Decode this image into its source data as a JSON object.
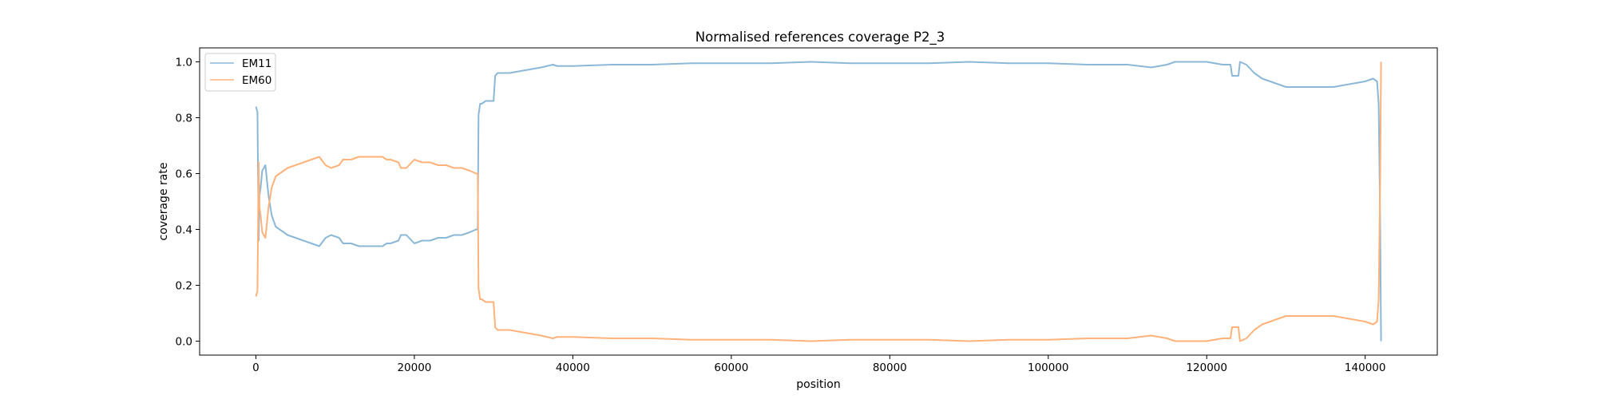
{
  "chart_data": {
    "type": "line",
    "title": "Normalised references coverage P2_3",
    "xlabel": "position",
    "ylabel": "coverage rate",
    "xlim": [
      -7100,
      149100
    ],
    "ylim": [
      -0.05,
      1.05
    ],
    "xticks": [
      0,
      20000,
      40000,
      60000,
      80000,
      100000,
      120000,
      140000
    ],
    "yticks": [
      0.0,
      0.2,
      0.4,
      0.6,
      0.8,
      1.0
    ],
    "xtick_labels": [
      "0",
      "20000",
      "40000",
      "60000",
      "80000",
      "100000",
      "120000",
      "140000"
    ],
    "ytick_labels": [
      "0.0",
      "0.2",
      "0.4",
      "0.6",
      "0.8",
      "1.0"
    ],
    "grid": false,
    "legend_position": "top-left",
    "series": [
      {
        "name": "EM11",
        "color": "#8cb8d8",
        "x": [
          0,
          200,
          350,
          450,
          600,
          800,
          1200,
          1600,
          2000,
          2500,
          3000,
          4000,
          5000,
          6000,
          7000,
          8000,
          8800,
          9500,
          10500,
          11000,
          12000,
          13000,
          14000,
          15000,
          16000,
          16500,
          17000,
          18000,
          18300,
          19000,
          20000,
          21000,
          22000,
          23000,
          24000,
          25000,
          26000,
          27000,
          27800,
          28000,
          28100,
          28300,
          28500,
          29000,
          29500,
          30000,
          30200,
          30500,
          31000,
          32000,
          34000,
          36000,
          37500,
          38000,
          40000,
          45000,
          50000,
          55000,
          60000,
          65000,
          70000,
          75000,
          80000,
          85000,
          90000,
          95000,
          100000,
          105000,
          110000,
          113000,
          115000,
          116000,
          118000,
          120000,
          122000,
          123000,
          123200,
          124000,
          124200,
          125000,
          126000,
          127000,
          128000,
          130000,
          132000,
          134000,
          136000,
          138000,
          140000,
          141000,
          141500,
          141700,
          141900,
          142000
        ],
        "y": [
          0.84,
          0.82,
          0.36,
          0.52,
          0.55,
          0.61,
          0.63,
          0.52,
          0.45,
          0.41,
          0.4,
          0.38,
          0.37,
          0.36,
          0.35,
          0.34,
          0.37,
          0.38,
          0.37,
          0.35,
          0.35,
          0.34,
          0.34,
          0.34,
          0.34,
          0.35,
          0.35,
          0.36,
          0.38,
          0.38,
          0.35,
          0.36,
          0.36,
          0.37,
          0.37,
          0.38,
          0.38,
          0.39,
          0.4,
          0.4,
          0.81,
          0.85,
          0.85,
          0.86,
          0.86,
          0.86,
          0.95,
          0.96,
          0.96,
          0.96,
          0.97,
          0.98,
          0.99,
          0.985,
          0.985,
          0.99,
          0.99,
          0.995,
          0.995,
          0.995,
          1.0,
          0.995,
          0.995,
          0.995,
          1.0,
          0.995,
          0.995,
          0.99,
          0.99,
          0.98,
          0.99,
          1.0,
          1.0,
          1.0,
          0.99,
          0.99,
          0.95,
          0.95,
          1.0,
          0.99,
          0.96,
          0.94,
          0.93,
          0.91,
          0.91,
          0.91,
          0.91,
          0.92,
          0.93,
          0.94,
          0.93,
          0.85,
          0.4,
          0.0
        ]
      },
      {
        "name": "EM60",
        "color": "#ffb27a",
        "x": [
          0,
          200,
          350,
          450,
          600,
          800,
          1200,
          1600,
          2000,
          2500,
          3000,
          4000,
          5000,
          6000,
          7000,
          8000,
          8800,
          9500,
          10500,
          11000,
          12000,
          13000,
          14000,
          15000,
          16000,
          16500,
          17000,
          18000,
          18300,
          19000,
          20000,
          21000,
          22000,
          23000,
          24000,
          25000,
          26000,
          27000,
          27800,
          28000,
          28100,
          28300,
          28500,
          29000,
          29500,
          30000,
          30200,
          30500,
          31000,
          32000,
          34000,
          36000,
          37500,
          38000,
          40000,
          45000,
          50000,
          55000,
          60000,
          65000,
          70000,
          75000,
          80000,
          85000,
          90000,
          95000,
          100000,
          105000,
          110000,
          113000,
          115000,
          116000,
          118000,
          120000,
          122000,
          123000,
          123200,
          124000,
          124200,
          125000,
          126000,
          127000,
          128000,
          130000,
          132000,
          134000,
          136000,
          138000,
          140000,
          141000,
          141500,
          141700,
          141900,
          142000
        ],
        "y": [
          0.16,
          0.18,
          0.64,
          0.48,
          0.45,
          0.39,
          0.37,
          0.48,
          0.55,
          0.59,
          0.6,
          0.62,
          0.63,
          0.64,
          0.65,
          0.66,
          0.63,
          0.62,
          0.63,
          0.65,
          0.65,
          0.66,
          0.66,
          0.66,
          0.66,
          0.65,
          0.65,
          0.64,
          0.62,
          0.62,
          0.65,
          0.64,
          0.64,
          0.63,
          0.63,
          0.62,
          0.62,
          0.61,
          0.6,
          0.6,
          0.19,
          0.15,
          0.15,
          0.14,
          0.14,
          0.14,
          0.05,
          0.04,
          0.04,
          0.04,
          0.03,
          0.02,
          0.01,
          0.015,
          0.015,
          0.01,
          0.01,
          0.005,
          0.005,
          0.005,
          0.0,
          0.005,
          0.005,
          0.005,
          0.0,
          0.005,
          0.005,
          0.01,
          0.01,
          0.02,
          0.01,
          0.0,
          0.0,
          0.0,
          0.01,
          0.01,
          0.05,
          0.05,
          0.0,
          0.01,
          0.04,
          0.06,
          0.07,
          0.09,
          0.09,
          0.09,
          0.09,
          0.08,
          0.07,
          0.06,
          0.07,
          0.15,
          0.6,
          1.0
        ]
      }
    ]
  }
}
